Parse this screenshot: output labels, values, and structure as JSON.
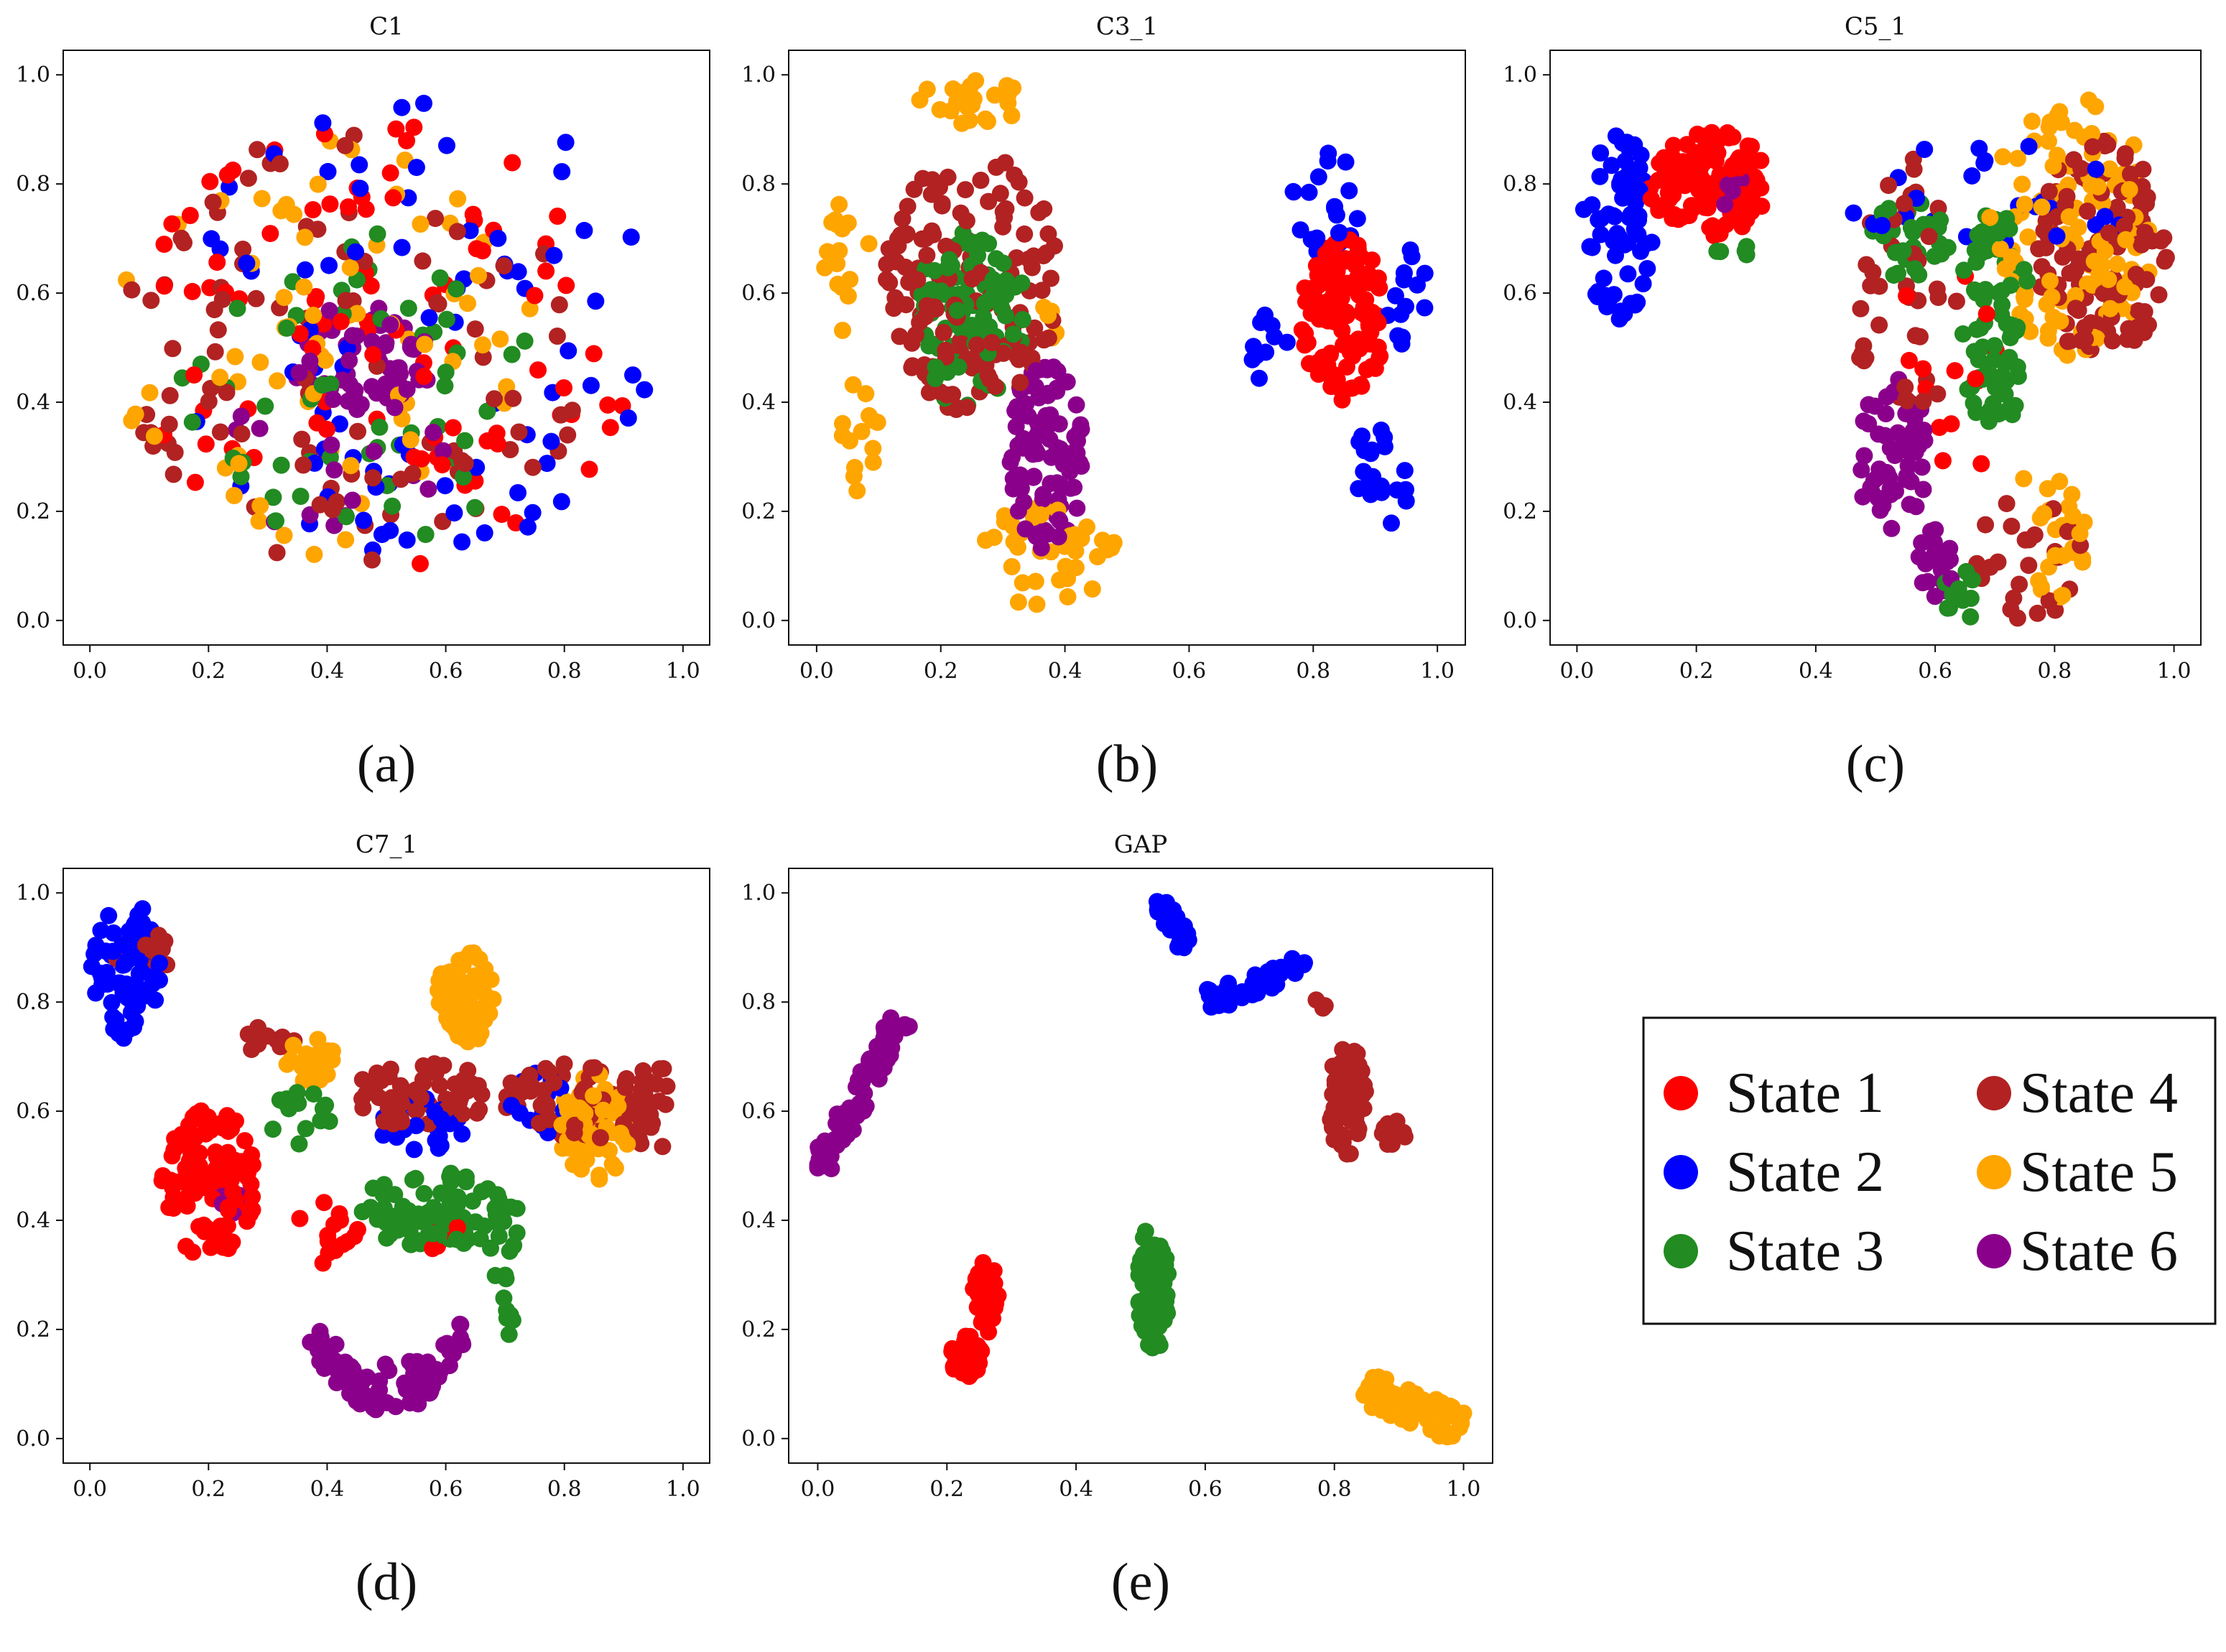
{
  "legend": {
    "placement": "right-of-bottom-row",
    "entries": [
      {
        "label": "State 1",
        "color": "#ff0000"
      },
      {
        "label": "State 4",
        "color": "#b22222"
      },
      {
        "label": "State 2",
        "color": "#0000ff"
      },
      {
        "label": "State 5",
        "color": "#ffa500"
      },
      {
        "label": "State 3",
        "color": "#228b22"
      },
      {
        "label": "State 6",
        "color": "#8b008b"
      }
    ]
  },
  "chart_data": [
    {
      "type": "scatter",
      "panel": "a",
      "caption": "(a)",
      "title": "C1",
      "xlim": [
        0,
        1
      ],
      "ylim": [
        0,
        1
      ],
      "xticks": [
        "0.0",
        "0.2",
        "0.4",
        "0.6",
        "0.8",
        "1.0"
      ],
      "yticks": [
        "0.0",
        "0.2",
        "0.4",
        "0.6",
        "0.8",
        "1.0"
      ],
      "series": [
        {
          "name": "State 1",
          "clusters": [
            {
              "cx": 0.5,
              "cy": 0.52,
              "rx": 0.42,
              "ry": 0.42,
              "n": 90,
              "shape": "disc"
            }
          ]
        },
        {
          "name": "State 2",
          "clusters": [
            {
              "cx": 0.55,
              "cy": 0.55,
              "rx": 0.43,
              "ry": 0.43,
              "n": 80,
              "shape": "disc"
            }
          ]
        },
        {
          "name": "State 3",
          "clusters": [
            {
              "cx": 0.45,
              "cy": 0.42,
              "rx": 0.3,
              "ry": 0.3,
              "n": 55,
              "shape": "disc"
            }
          ]
        },
        {
          "name": "State 4",
          "clusters": [
            {
              "cx": 0.45,
              "cy": 0.5,
              "rx": 0.4,
              "ry": 0.4,
              "n": 95,
              "shape": "disc"
            }
          ]
        },
        {
          "name": "State 5",
          "clusters": [
            {
              "cx": 0.4,
              "cy": 0.5,
              "rx": 0.36,
              "ry": 0.38,
              "n": 70,
              "shape": "disc"
            }
          ]
        },
        {
          "name": "State 6",
          "clusters": [
            {
              "cx": 0.46,
              "cy": 0.48,
              "rx": 0.12,
              "ry": 0.1,
              "n": 70,
              "shape": "disc"
            },
            {
              "cx": 0.4,
              "cy": 0.3,
              "rx": 0.2,
              "ry": 0.15,
              "n": 18,
              "shape": "disc"
            }
          ]
        }
      ]
    },
    {
      "type": "scatter",
      "panel": "b",
      "caption": "(b)",
      "title": "C3_1",
      "xlim": [
        0,
        1
      ],
      "ylim": [
        0,
        1
      ],
      "xticks": [
        "0.0",
        "0.2",
        "0.4",
        "0.6",
        "0.8",
        "1.0"
      ],
      "yticks": [
        "0.0",
        "0.2",
        "0.4",
        "0.6",
        "0.8",
        "1.0"
      ],
      "series": [
        {
          "name": "State 1",
          "clusters": [
            {
              "cx": 0.85,
              "cy": 0.55,
              "rx": 0.07,
              "ry": 0.15,
              "n": 110,
              "shape": "disc"
            }
          ]
        },
        {
          "name": "State 2",
          "clusters": [
            {
              "cx": 0.82,
              "cy": 0.76,
              "rx": 0.06,
              "ry": 0.1,
              "n": 22,
              "shape": "disc"
            },
            {
              "cx": 0.95,
              "cy": 0.6,
              "rx": 0.04,
              "ry": 0.1,
              "n": 14,
              "shape": "disc"
            },
            {
              "cx": 0.91,
              "cy": 0.27,
              "rx": 0.05,
              "ry": 0.1,
              "n": 22,
              "shape": "disc"
            },
            {
              "cx": 0.73,
              "cy": 0.5,
              "rx": 0.03,
              "ry": 0.07,
              "n": 10,
              "shape": "disc"
            }
          ]
        },
        {
          "name": "State 3",
          "clusters": [
            {
              "cx": 0.25,
              "cy": 0.55,
              "rx": 0.09,
              "ry": 0.17,
              "n": 90,
              "shape": "disc"
            }
          ]
        },
        {
          "name": "State 4",
          "clusters": [
            {
              "cx": 0.25,
              "cy": 0.62,
              "rx": 0.14,
              "ry": 0.24,
              "n": 150,
              "shape": "disc"
            }
          ]
        },
        {
          "name": "State 5",
          "clusters": [
            {
              "cx": 0.25,
              "cy": 0.95,
              "rx": 0.1,
              "ry": 0.04,
              "n": 22,
              "shape": "disc"
            },
            {
              "cx": 0.05,
              "cy": 0.65,
              "rx": 0.04,
              "ry": 0.14,
              "n": 16,
              "shape": "disc"
            },
            {
              "cx": 0.07,
              "cy": 0.35,
              "rx": 0.03,
              "ry": 0.12,
              "n": 14,
              "shape": "disc"
            },
            {
              "cx": 0.38,
              "cy": 0.12,
              "rx": 0.12,
              "ry": 0.1,
              "n": 40,
              "shape": "disc"
            },
            {
              "cx": 0.38,
              "cy": 0.55,
              "rx": 0.02,
              "ry": 0.05,
              "n": 6,
              "shape": "disc"
            }
          ]
        },
        {
          "name": "State 6",
          "clusters": [
            {
              "cx": 0.37,
              "cy": 0.3,
              "rx": 0.06,
              "ry": 0.17,
              "n": 90,
              "shape": "disc"
            }
          ]
        }
      ]
    },
    {
      "type": "scatter",
      "panel": "c",
      "caption": "(c)",
      "title": "C5_1",
      "xlim": [
        0,
        1
      ],
      "ylim": [
        0,
        1
      ],
      "xticks": [
        "0.0",
        "0.2",
        "0.4",
        "0.6",
        "0.8",
        "1.0"
      ],
      "yticks": [
        "0.0",
        "0.2",
        "0.4",
        "0.6",
        "0.8",
        "1.0"
      ],
      "series": [
        {
          "name": "State 1",
          "clusters": [
            {
              "cx": 0.22,
              "cy": 0.8,
              "rx": 0.1,
              "ry": 0.1,
              "n": 110,
              "shape": "disc"
            },
            {
              "cx": 0.62,
              "cy": 0.45,
              "rx": 0.1,
              "ry": 0.25,
              "n": 14,
              "shape": "disc"
            }
          ]
        },
        {
          "name": "State 2",
          "clusters": [
            {
              "cx": 0.07,
              "cy": 0.72,
              "rx": 0.06,
              "ry": 0.17,
              "n": 70,
              "shape": "disc"
            },
            {
              "cx": 0.7,
              "cy": 0.78,
              "rx": 0.26,
              "ry": 0.1,
              "n": 26,
              "shape": "disc"
            }
          ]
        },
        {
          "name": "State 3",
          "clusters": [
            {
              "cx": 0.7,
              "cy": 0.55,
              "rx": 0.06,
              "ry": 0.2,
              "n": 80,
              "shape": "disc"
            },
            {
              "cx": 0.55,
              "cy": 0.7,
              "rx": 0.08,
              "ry": 0.07,
              "n": 30,
              "shape": "disc"
            },
            {
              "cx": 0.65,
              "cy": 0.05,
              "rx": 0.04,
              "ry": 0.05,
              "n": 12,
              "shape": "disc"
            },
            {
              "cx": 0.27,
              "cy": 0.67,
              "rx": 0.04,
              "ry": 0.02,
              "n": 5,
              "shape": "disc"
            }
          ]
        },
        {
          "name": "State 4",
          "clusters": [
            {
              "cx": 0.88,
              "cy": 0.68,
              "rx": 0.11,
              "ry": 0.2,
              "n": 120,
              "shape": "disc"
            },
            {
              "cx": 0.55,
              "cy": 0.6,
              "rx": 0.09,
              "ry": 0.25,
              "n": 40,
              "shape": "disc"
            },
            {
              "cx": 0.75,
              "cy": 0.12,
              "rx": 0.1,
              "ry": 0.12,
              "n": 25,
              "shape": "disc"
            }
          ]
        },
        {
          "name": "State 5",
          "clusters": [
            {
              "cx": 0.83,
              "cy": 0.72,
              "rx": 0.14,
              "ry": 0.24,
              "n": 110,
              "shape": "disc"
            },
            {
              "cx": 0.8,
              "cy": 0.18,
              "rx": 0.06,
              "ry": 0.16,
              "n": 25,
              "shape": "disc"
            }
          ]
        },
        {
          "name": "State 6",
          "clusters": [
            {
              "cx": 0.53,
              "cy": 0.3,
              "rx": 0.06,
              "ry": 0.15,
              "n": 60,
              "shape": "disc"
            },
            {
              "cx": 0.6,
              "cy": 0.1,
              "rx": 0.03,
              "ry": 0.08,
              "n": 20,
              "shape": "disc"
            },
            {
              "cx": 0.25,
              "cy": 0.79,
              "rx": 0.03,
              "ry": 0.04,
              "n": 8,
              "shape": "disc"
            }
          ]
        }
      ]
    },
    {
      "type": "scatter",
      "panel": "d",
      "caption": "(d)",
      "title": "C7_1",
      "xlim": [
        0,
        1
      ],
      "ylim": [
        0,
        1
      ],
      "xticks": [
        "0.0",
        "0.2",
        "0.4",
        "0.6",
        "0.8",
        "1.0"
      ],
      "yticks": [
        "0.0",
        "0.2",
        "0.4",
        "0.6",
        "0.8",
        "1.0"
      ],
      "series": [
        {
          "name": "State 1",
          "clusters": [
            {
              "cx": 0.2,
              "cy": 0.47,
              "rx": 0.08,
              "ry": 0.14,
              "n": 110,
              "shape": "disc"
            },
            {
              "cx": 0.4,
              "cy": 0.38,
              "rx": 0.06,
              "ry": 0.06,
              "n": 14,
              "shape": "disc"
            },
            {
              "cx": 0.6,
              "cy": 0.38,
              "rx": 0.04,
              "ry": 0.04,
              "n": 6,
              "shape": "disc"
            }
          ]
        },
        {
          "name": "State 2",
          "clusters": [
            {
              "cx": 0.06,
              "cy": 0.86,
              "rx": 0.06,
              "ry": 0.13,
              "n": 70,
              "shape": "disc"
            },
            {
              "cx": 0.55,
              "cy": 0.57,
              "rx": 0.08,
              "ry": 0.06,
              "n": 25,
              "shape": "disc"
            },
            {
              "cx": 0.77,
              "cy": 0.62,
              "rx": 0.06,
              "ry": 0.06,
              "n": 12,
              "shape": "disc"
            }
          ]
        },
        {
          "name": "State 3",
          "clusters": [
            {
              "cx": 0.58,
              "cy": 0.42,
              "rx": 0.13,
              "ry": 0.07,
              "n": 80,
              "shape": "disc"
            },
            {
              "cx": 0.7,
              "cy": 0.32,
              "rx": 0.03,
              "ry": 0.14,
              "n": 20,
              "shape": "disc"
            },
            {
              "cx": 0.35,
              "cy": 0.58,
              "rx": 0.06,
              "ry": 0.06,
              "n": 15,
              "shape": "disc"
            }
          ]
        },
        {
          "name": "State 4",
          "clusters": [
            {
              "cx": 0.56,
              "cy": 0.63,
              "rx": 0.12,
              "ry": 0.06,
              "n": 55,
              "shape": "disc"
            },
            {
              "cx": 0.82,
              "cy": 0.62,
              "rx": 0.12,
              "ry": 0.08,
              "n": 60,
              "shape": "disc"
            },
            {
              "cx": 0.95,
              "cy": 0.6,
              "rx": 0.03,
              "ry": 0.1,
              "n": 20,
              "shape": "disc"
            },
            {
              "cx": 0.09,
              "cy": 0.88,
              "rx": 0.05,
              "ry": 0.05,
              "n": 14,
              "shape": "disc"
            },
            {
              "cx": 0.3,
              "cy": 0.72,
              "rx": 0.05,
              "ry": 0.04,
              "n": 10,
              "shape": "disc"
            }
          ]
        },
        {
          "name": "State 5",
          "clusters": [
            {
              "cx": 0.63,
              "cy": 0.81,
              "rx": 0.05,
              "ry": 0.09,
              "n": 60,
              "shape": "disc"
            },
            {
              "cx": 0.85,
              "cy": 0.57,
              "rx": 0.06,
              "ry": 0.1,
              "n": 60,
              "shape": "disc"
            },
            {
              "cx": 0.37,
              "cy": 0.7,
              "rx": 0.04,
              "ry": 0.05,
              "n": 22,
              "shape": "disc"
            }
          ]
        },
        {
          "name": "State 6",
          "clusters": [
            {
              "cx": 0.5,
              "cy": 0.12,
              "rx": 0.13,
              "ry": 0.11,
              "n": 90,
              "shape": "arc",
              "drop": 0.09
            },
            {
              "cx": 0.24,
              "cy": 0.43,
              "rx": 0.03,
              "ry": 0.02,
              "n": 6,
              "shape": "disc"
            }
          ]
        }
      ]
    },
    {
      "type": "scatter",
      "panel": "e",
      "caption": "(e)",
      "title": "GAP",
      "xlim": [
        0,
        1
      ],
      "ylim": [
        0,
        1
      ],
      "xticks": [
        "0.0",
        "0.2",
        "0.4",
        "0.6",
        "0.8",
        "1.0"
      ],
      "yticks": [
        "0.0",
        "0.2",
        "0.4",
        "0.6",
        "0.8",
        "1.0"
      ],
      "series": [
        {
          "name": "State 1",
          "clusters": [
            {
              "cx": 0.23,
              "cy": 0.15,
              "rx": 0.025,
              "ry": 0.04,
              "n": 40,
              "shape": "disc"
            },
            {
              "cx": 0.26,
              "cy": 0.26,
              "rx": 0.02,
              "ry": 0.07,
              "n": 30,
              "shape": "disc"
            }
          ]
        },
        {
          "name": "State 2",
          "clusters": [
            {
              "x0": 0.53,
              "y0": 0.99,
              "x1": 0.57,
              "y1": 0.9,
              "w": 0.015,
              "n": 25,
              "shape": "band"
            },
            {
              "x0": 0.6,
              "y0": 0.8,
              "x1": 0.76,
              "y1": 0.87,
              "w": 0.02,
              "n": 50,
              "shape": "band"
            }
          ]
        },
        {
          "name": "State 3",
          "clusters": [
            {
              "cx": 0.52,
              "cy": 0.28,
              "rx": 0.025,
              "ry": 0.12,
              "n": 80,
              "shape": "disc"
            }
          ]
        },
        {
          "name": "State 4",
          "clusters": [
            {
              "cx": 0.82,
              "cy": 0.62,
              "rx": 0.03,
              "ry": 0.1,
              "n": 60,
              "shape": "disc"
            },
            {
              "cx": 0.89,
              "cy": 0.56,
              "rx": 0.02,
              "ry": 0.025,
              "n": 14,
              "shape": "disc"
            },
            {
              "cx": 0.78,
              "cy": 0.8,
              "rx": 0.01,
              "ry": 0.02,
              "n": 4,
              "shape": "disc"
            }
          ]
        },
        {
          "name": "State 5",
          "clusters": [
            {
              "x0": 0.85,
              "y0": 0.09,
              "x1": 1.0,
              "y1": 0.02,
              "w": 0.03,
              "n": 70,
              "shape": "band"
            }
          ]
        },
        {
          "name": "State 6",
          "clusters": [
            {
              "x0": 0.0,
              "y0": 0.49,
              "x1": 0.13,
              "y1": 0.77,
              "w": 0.018,
              "n": 80,
              "shape": "band"
            }
          ]
        }
      ]
    }
  ]
}
